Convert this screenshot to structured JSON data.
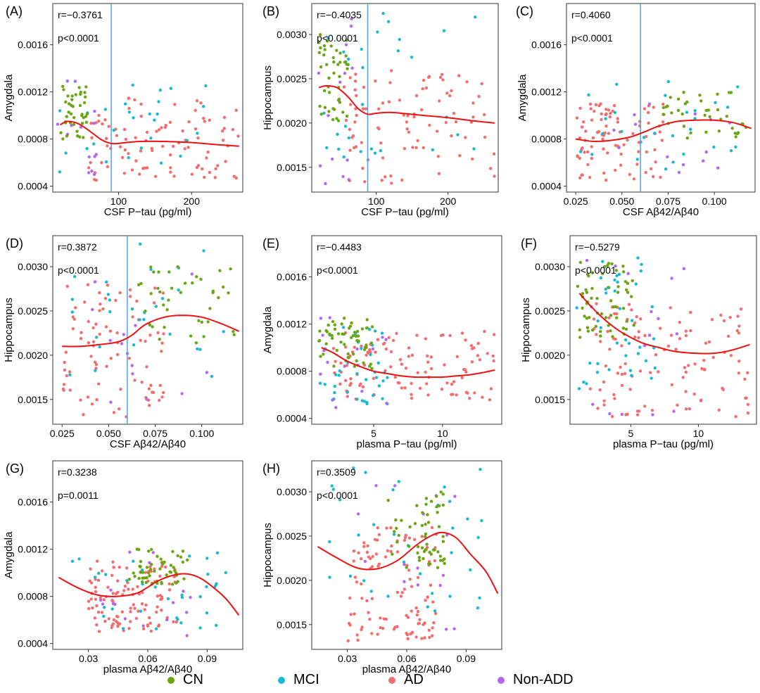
{
  "colors": {
    "CN": "#6aa514",
    "MCI": "#1ab9d1",
    "AD": "#f26e6e",
    "Non-ADD": "#b565f0",
    "fit": "#ee1111",
    "cutoff": "#5b9ee0"
  },
  "legend": [
    {
      "key": "CN",
      "label": "CN"
    },
    {
      "key": "MCI",
      "label": "MCI"
    },
    {
      "key": "AD",
      "label": "AD"
    },
    {
      "key": "Non-ADD",
      "label": "Non-ADD"
    }
  ],
  "chart_data": [
    {
      "type": "scatter",
      "panel": "(A)",
      "r_text": "r=−0.3761",
      "p_text": "p<0.0001",
      "xlabel": "CSF P−tau (pg/ml)",
      "ylabel": "Amygdala",
      "xlim": [
        10,
        270
      ],
      "ylim": [
        0.00035,
        0.00195
      ],
      "xticks": [
        100,
        200
      ],
      "xtick_labels": [
        "100",
        "200"
      ],
      "yticks": [
        0.0004,
        0.0008,
        0.0012,
        0.0016
      ],
      "ytick_labels": [
        "0.0004",
        "0.0008",
        "0.0012",
        "0.0016"
      ],
      "vline": 90,
      "curve": [
        [
          20,
          0.00092
        ],
        [
          30,
          0.00095
        ],
        [
          45,
          0.00093
        ],
        [
          60,
          0.00087
        ],
        [
          75,
          0.0008
        ],
        [
          85,
          0.00077
        ],
        [
          95,
          0.00076
        ],
        [
          110,
          0.00077
        ],
        [
          130,
          0.00078
        ],
        [
          160,
          0.00078
        ],
        [
          200,
          0.00077
        ],
        [
          240,
          0.00075
        ],
        [
          265,
          0.00074
        ]
      ],
      "scatter_seed": 11,
      "scatter": {
        "CN": {
          "n": 40,
          "x": [
            20,
            60
          ],
          "y": [
            0.0008,
            0.00125
          ]
        },
        "MCI": {
          "n": 28,
          "x": [
            15,
            220
          ],
          "y": [
            0.0005,
            0.0013
          ]
        },
        "AD": {
          "n": 95,
          "x": [
            55,
            265
          ],
          "y": [
            0.00045,
            0.00115
          ]
        },
        "Non-ADD": {
          "n": 14,
          "x": [
            15,
            70
          ],
          "y": [
            0.00045,
            0.0013
          ]
        }
      }
    },
    {
      "type": "scatter",
      "panel": "(B)",
      "r_text": "r=−0.4035",
      "p_text": "p<0.0001",
      "xlabel": "CSF P−tau (pg/ml)",
      "ylabel": "Hippocampus",
      "xlim": [
        10,
        270
      ],
      "ylim": [
        0.00122,
        0.00335
      ],
      "xticks": [
        100,
        200
      ],
      "xtick_labels": [
        "100",
        "200"
      ],
      "yticks": [
        0.0015,
        0.002,
        0.0025,
        0.003
      ],
      "ytick_labels": [
        "0.0015",
        "0.0020",
        "0.0025",
        "0.0030"
      ],
      "vline": 88,
      "curve": [
        [
          20,
          0.0024
        ],
        [
          30,
          0.00242
        ],
        [
          45,
          0.0024
        ],
        [
          60,
          0.0023
        ],
        [
          75,
          0.00216
        ],
        [
          88,
          0.0021
        ],
        [
          100,
          0.00211
        ],
        [
          120,
          0.00212
        ],
        [
          160,
          0.00209
        ],
        [
          200,
          0.00206
        ],
        [
          240,
          0.00202
        ],
        [
          265,
          0.002
        ]
      ],
      "scatter_seed": 23,
      "scatter": {
        "CN": {
          "n": 45,
          "x": [
            20,
            65
          ],
          "y": [
            0.002,
            0.003
          ]
        },
        "MCI": {
          "n": 30,
          "x": [
            15,
            240
          ],
          "y": [
            0.0016,
            0.0033
          ]
        },
        "AD": {
          "n": 90,
          "x": [
            55,
            265
          ],
          "y": [
            0.0013,
            0.0026
          ]
        },
        "Non-ADD": {
          "n": 14,
          "x": [
            15,
            70
          ],
          "y": [
            0.0013,
            0.0032
          ]
        }
      }
    },
    {
      "type": "scatter",
      "panel": "(C)",
      "r_text": "r=0.4060",
      "p_text": "p<0.0001",
      "xlabel": "CSF Aβ42/Aβ40",
      "ylabel": "Amygdala",
      "xlim": [
        0.02,
        0.122
      ],
      "ylim": [
        0.00035,
        0.00195
      ],
      "xticks": [
        0.025,
        0.05,
        0.075,
        0.1
      ],
      "xtick_labels": [
        "0.025",
        "0.050",
        "0.075",
        "0.100"
      ],
      "yticks": [
        0.0004,
        0.0008,
        0.0012,
        0.0016
      ],
      "ytick_labels": [
        "0.0004",
        "0.0008",
        "0.0012",
        "0.0016"
      ],
      "vline": 0.06,
      "curve": [
        [
          0.025,
          0.0008
        ],
        [
          0.035,
          0.00078
        ],
        [
          0.045,
          0.00079
        ],
        [
          0.055,
          0.00082
        ],
        [
          0.062,
          0.00086
        ],
        [
          0.07,
          0.00091
        ],
        [
          0.08,
          0.00095
        ],
        [
          0.09,
          0.00096
        ],
        [
          0.1,
          0.00096
        ],
        [
          0.11,
          0.00094
        ],
        [
          0.12,
          0.00089
        ]
      ],
      "scatter_seed": 37,
      "scatter": {
        "CN": {
          "n": 38,
          "x": [
            0.07,
            0.118
          ],
          "y": [
            0.0008,
            0.0012
          ]
        },
        "MCI": {
          "n": 28,
          "x": [
            0.025,
            0.115
          ],
          "y": [
            0.0005,
            0.0013
          ]
        },
        "AD": {
          "n": 90,
          "x": [
            0.025,
            0.075
          ],
          "y": [
            0.00045,
            0.0011
          ]
        },
        "Non-ADD": {
          "n": 14,
          "x": [
            0.04,
            0.11
          ],
          "y": [
            0.0005,
            0.0013
          ]
        }
      }
    },
    {
      "type": "scatter",
      "panel": "(D)",
      "r_text": "r=0.3872",
      "p_text": "p<0.0001",
      "xlabel": "CSF Aβ42/Aβ40",
      "ylabel": "Hippocampus",
      "xlim": [
        0.02,
        0.122
      ],
      "ylim": [
        0.00122,
        0.00335
      ],
      "xticks": [
        0.025,
        0.05,
        0.075,
        0.1
      ],
      "xtick_labels": [
        "0.025",
        "0.050",
        "0.075",
        "0.100"
      ],
      "yticks": [
        0.0015,
        0.002,
        0.0025,
        0.003
      ],
      "ytick_labels": [
        "0.0015",
        "0.0020",
        "0.0025",
        "0.0030"
      ],
      "vline": 0.06,
      "curve": [
        [
          0.025,
          0.0021
        ],
        [
          0.035,
          0.0021
        ],
        [
          0.045,
          0.00212
        ],
        [
          0.055,
          0.00215
        ],
        [
          0.062,
          0.00222
        ],
        [
          0.07,
          0.00235
        ],
        [
          0.08,
          0.00243
        ],
        [
          0.09,
          0.00245
        ],
        [
          0.1,
          0.00243
        ],
        [
          0.11,
          0.00236
        ],
        [
          0.12,
          0.00227
        ]
      ],
      "scatter_seed": 41,
      "scatter": {
        "CN": {
          "n": 40,
          "x": [
            0.065,
            0.118
          ],
          "y": [
            0.0021,
            0.003
          ]
        },
        "MCI": {
          "n": 28,
          "x": [
            0.025,
            0.115
          ],
          "y": [
            0.0016,
            0.0033
          ]
        },
        "AD": {
          "n": 85,
          "x": [
            0.025,
            0.08
          ],
          "y": [
            0.0013,
            0.0028
          ]
        },
        "Non-ADD": {
          "n": 14,
          "x": [
            0.035,
            0.11
          ],
          "y": [
            0.0013,
            0.0031
          ]
        }
      }
    },
    {
      "type": "scatter",
      "panel": "(E)",
      "r_text": "r=−0.4483",
      "p_text": "p<0.0001",
      "xlabel": "plasma P−tau (pg/ml)",
      "ylabel": "Amygdala",
      "xlim": [
        0.5,
        14.3
      ],
      "ylim": [
        0.00035,
        0.00195
      ],
      "xticks": [
        5,
        10
      ],
      "xtick_labels": [
        "5",
        "10"
      ],
      "yticks": [
        0.0004,
        0.0008,
        0.0012,
        0.0016
      ],
      "ytick_labels": [
        "0.0004",
        "0.0008",
        "0.0012",
        "0.0016"
      ],
      "vline": null,
      "curve": [
        [
          1.2,
          0.001
        ],
        [
          2,
          0.00096
        ],
        [
          3,
          0.00089
        ],
        [
          4,
          0.00084
        ],
        [
          5,
          0.0008
        ],
        [
          6,
          0.00078
        ],
        [
          7,
          0.00076
        ],
        [
          8,
          0.00075
        ],
        [
          9,
          0.00075
        ],
        [
          10,
          0.00075
        ],
        [
          11,
          0.00076
        ],
        [
          12,
          0.00077
        ],
        [
          13,
          0.00079
        ],
        [
          13.8,
          0.00081
        ]
      ],
      "scatter_seed": 53,
      "scatter": {
        "CN": {
          "n": 55,
          "x": [
            1,
            5
          ],
          "y": [
            0.0008,
            0.00125
          ]
        },
        "MCI": {
          "n": 38,
          "x": [
            1,
            6
          ],
          "y": [
            0.0005,
            0.0012
          ]
        },
        "AD": {
          "n": 110,
          "x": [
            2,
            13.8
          ],
          "y": [
            0.00055,
            0.00115
          ]
        },
        "Non-ADD": {
          "n": 16,
          "x": [
            1,
            7
          ],
          "y": [
            0.00045,
            0.0013
          ]
        }
      }
    },
    {
      "type": "scatter",
      "panel": "(F)",
      "r_text": "r=−0.5279",
      "p_text": "p<0.0001",
      "xlabel": "plasma P−tau (pg/ml)",
      "ylabel": "Hippocampus",
      "xlim": [
        0.5,
        14.3
      ],
      "ylim": [
        0.00122,
        0.00335
      ],
      "xticks": [
        5,
        10
      ],
      "xtick_labels": [
        "5",
        "10"
      ],
      "yticks": [
        0.0015,
        0.002,
        0.0025,
        0.003
      ],
      "ytick_labels": [
        "0.0015",
        "0.0020",
        "0.0025",
        "0.0030"
      ],
      "vline": null,
      "curve": [
        [
          1.2,
          0.0027
        ],
        [
          2,
          0.00256
        ],
        [
          3,
          0.00241
        ],
        [
          4,
          0.00229
        ],
        [
          5,
          0.0022
        ],
        [
          6,
          0.00213
        ],
        [
          7,
          0.00209
        ],
        [
          8,
          0.00205
        ],
        [
          9,
          0.00203
        ],
        [
          10,
          0.00202
        ],
        [
          11,
          0.00202
        ],
        [
          12,
          0.00204
        ],
        [
          13,
          0.00208
        ],
        [
          13.8,
          0.00212
        ]
      ],
      "scatter_seed": 67,
      "scatter": {
        "CN": {
          "n": 60,
          "x": [
            1,
            5.5
          ],
          "y": [
            0.0022,
            0.0031
          ]
        },
        "MCI": {
          "n": 40,
          "x": [
            1,
            7
          ],
          "y": [
            0.0016,
            0.0031
          ]
        },
        "AD": {
          "n": 110,
          "x": [
            2,
            13.8
          ],
          "y": [
            0.0013,
            0.0026
          ]
        },
        "Non-ADD": {
          "n": 16,
          "x": [
            1,
            9
          ],
          "y": [
            0.0013,
            0.0032
          ]
        }
      }
    },
    {
      "type": "scatter",
      "panel": "(G)",
      "r_text": "r=0.3238",
      "p_text": "p=0.0011",
      "xlabel": "plasma Aβ42/Aβ40",
      "ylabel": "Amygdala",
      "xlim": [
        0.012,
        0.108
      ],
      "ylim": [
        0.00035,
        0.00195
      ],
      "xticks": [
        0.03,
        0.06,
        0.09
      ],
      "xtick_labels": [
        "0.03",
        "0.06",
        "0.09"
      ],
      "yticks": [
        0.0004,
        0.0008,
        0.0012,
        0.0016
      ],
      "ytick_labels": [
        "0.0004",
        "0.0008",
        "0.0012",
        "0.0016"
      ],
      "vline": null,
      "curve": [
        [
          0.015,
          0.00096
        ],
        [
          0.025,
          0.00087
        ],
        [
          0.035,
          0.00081
        ],
        [
          0.045,
          0.0008
        ],
        [
          0.055,
          0.00083
        ],
        [
          0.065,
          0.00093
        ],
        [
          0.073,
          0.00098
        ],
        [
          0.08,
          0.00099
        ],
        [
          0.087,
          0.00095
        ],
        [
          0.095,
          0.00085
        ],
        [
          0.1,
          0.00077
        ],
        [
          0.106,
          0.00064
        ]
      ],
      "scatter_seed": 79,
      "scatter": {
        "CN": {
          "n": 55,
          "x": [
            0.05,
            0.08
          ],
          "y": [
            0.0009,
            0.0012
          ]
        },
        "MCI": {
          "n": 35,
          "x": [
            0.02,
            0.1
          ],
          "y": [
            0.0005,
            0.0012
          ]
        },
        "AD": {
          "n": 110,
          "x": [
            0.03,
            0.075
          ],
          "y": [
            0.0005,
            0.0011
          ]
        },
        "Non-ADD": {
          "n": 16,
          "x": [
            0.035,
            0.085
          ],
          "y": [
            0.00045,
            0.0012
          ]
        }
      }
    },
    {
      "type": "scatter",
      "panel": "(H)",
      "r_text": "r=0.3509",
      "p_text": "p<0.0001",
      "xlabel": "plasma Aβ42/Aβ40",
      "ylabel": "Hippocampus",
      "xlim": [
        0.012,
        0.108
      ],
      "ylim": [
        0.00122,
        0.00335
      ],
      "xticks": [
        0.03,
        0.06,
        0.09
      ],
      "xtick_labels": [
        "0.03",
        "0.06",
        "0.09"
      ],
      "yticks": [
        0.0015,
        0.002,
        0.0025,
        0.003
      ],
      "ytick_labels": [
        "0.0015",
        "0.0020",
        "0.0025",
        "0.0030"
      ],
      "vline": null,
      "curve": [
        [
          0.015,
          0.00238
        ],
        [
          0.025,
          0.00225
        ],
        [
          0.035,
          0.00214
        ],
        [
          0.045,
          0.00213
        ],
        [
          0.055,
          0.00222
        ],
        [
          0.065,
          0.0024
        ],
        [
          0.072,
          0.0025
        ],
        [
          0.078,
          0.00254
        ],
        [
          0.085,
          0.00248
        ],
        [
          0.092,
          0.0023
        ],
        [
          0.1,
          0.0021
        ],
        [
          0.106,
          0.00185
        ]
      ],
      "scatter_seed": 97,
      "scatter": {
        "CN": {
          "n": 55,
          "x": [
            0.05,
            0.08
          ],
          "y": [
            0.0021,
            0.003
          ]
        },
        "MCI": {
          "n": 35,
          "x": [
            0.02,
            0.1
          ],
          "y": [
            0.0016,
            0.0033
          ]
        },
        "AD": {
          "n": 110,
          "x": [
            0.03,
            0.075
          ],
          "y": [
            0.0013,
            0.0026
          ]
        },
        "Non-ADD": {
          "n": 16,
          "x": [
            0.035,
            0.085
          ],
          "y": [
            0.0013,
            0.0031
          ]
        }
      }
    }
  ]
}
